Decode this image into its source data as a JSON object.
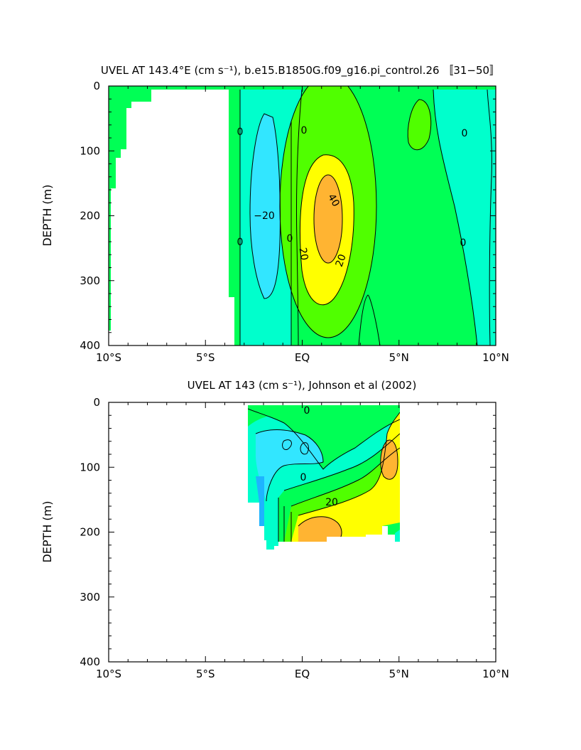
{
  "chart_data": [
    {
      "type": "heatmap",
      "subtype": "filled-contour",
      "title": "UVEL AT 143.4°E (cm s⁻¹), b.e15.B1850G.f09_g16.pi_control.26 〚31−50〛",
      "xlabel": "",
      "ylabel": "DEPTH (m)",
      "x_ticks": [
        "10°S",
        "5°S",
        "EQ",
        "5°N",
        "10°N"
      ],
      "y_ticks": [
        "0",
        "100",
        "200",
        "300",
        "400"
      ],
      "xlim": [
        -10,
        10
      ],
      "ylim": [
        400,
        0
      ],
      "contour_labels": [
        "0",
        "0",
        "0",
        "−20",
        "0",
        "20",
        "20",
        "40",
        "0",
        "0"
      ],
      "level_colors": {
        "-40": "#1eb4ff",
        "-20": "#32e6ff",
        "0": "#00ffcc",
        "10": "#00ff55",
        "20": "#50ff00",
        "30": "#ffff00",
        "40": "#ffb432"
      },
      "features": [
        {
          "name": "westward flow west of equator",
          "x_range": [
            -3.6,
            -0.8
          ],
          "depth_range": [
            0,
            400
          ],
          "value": -20
        },
        {
          "name": "equatorial undercurrent core",
          "x": 1.2,
          "depth": 200,
          "value": 40
        },
        {
          "name": "eastward near-surface lens",
          "x": 6.2,
          "depth": 60,
          "value": 20
        }
      ]
    },
    {
      "type": "heatmap",
      "subtype": "filled-contour",
      "title": "UVEL AT 143 (cm s⁻¹), Johnson et al (2002)",
      "xlabel": "",
      "ylabel": "DEPTH (m)",
      "x_ticks": [
        "10°S",
        "5°S",
        "EQ",
        "5°N",
        "10°N"
      ],
      "y_ticks": [
        "0",
        "100",
        "200",
        "300",
        "400"
      ],
      "xlim": [
        -10,
        10
      ],
      "ylim": [
        400,
        0
      ],
      "contour_labels": [
        "0",
        "0",
        "20"
      ],
      "data_extent": {
        "x": [
          -2.8,
          5
        ],
        "depth": [
          0,
          225
        ]
      },
      "features": [
        {
          "name": "equatorial undercurrent core",
          "x": 0.5,
          "depth": 200,
          "value": 40
        },
        {
          "name": "westward flow",
          "x": -1.5,
          "depth": 80,
          "value": -20
        }
      ]
    }
  ]
}
